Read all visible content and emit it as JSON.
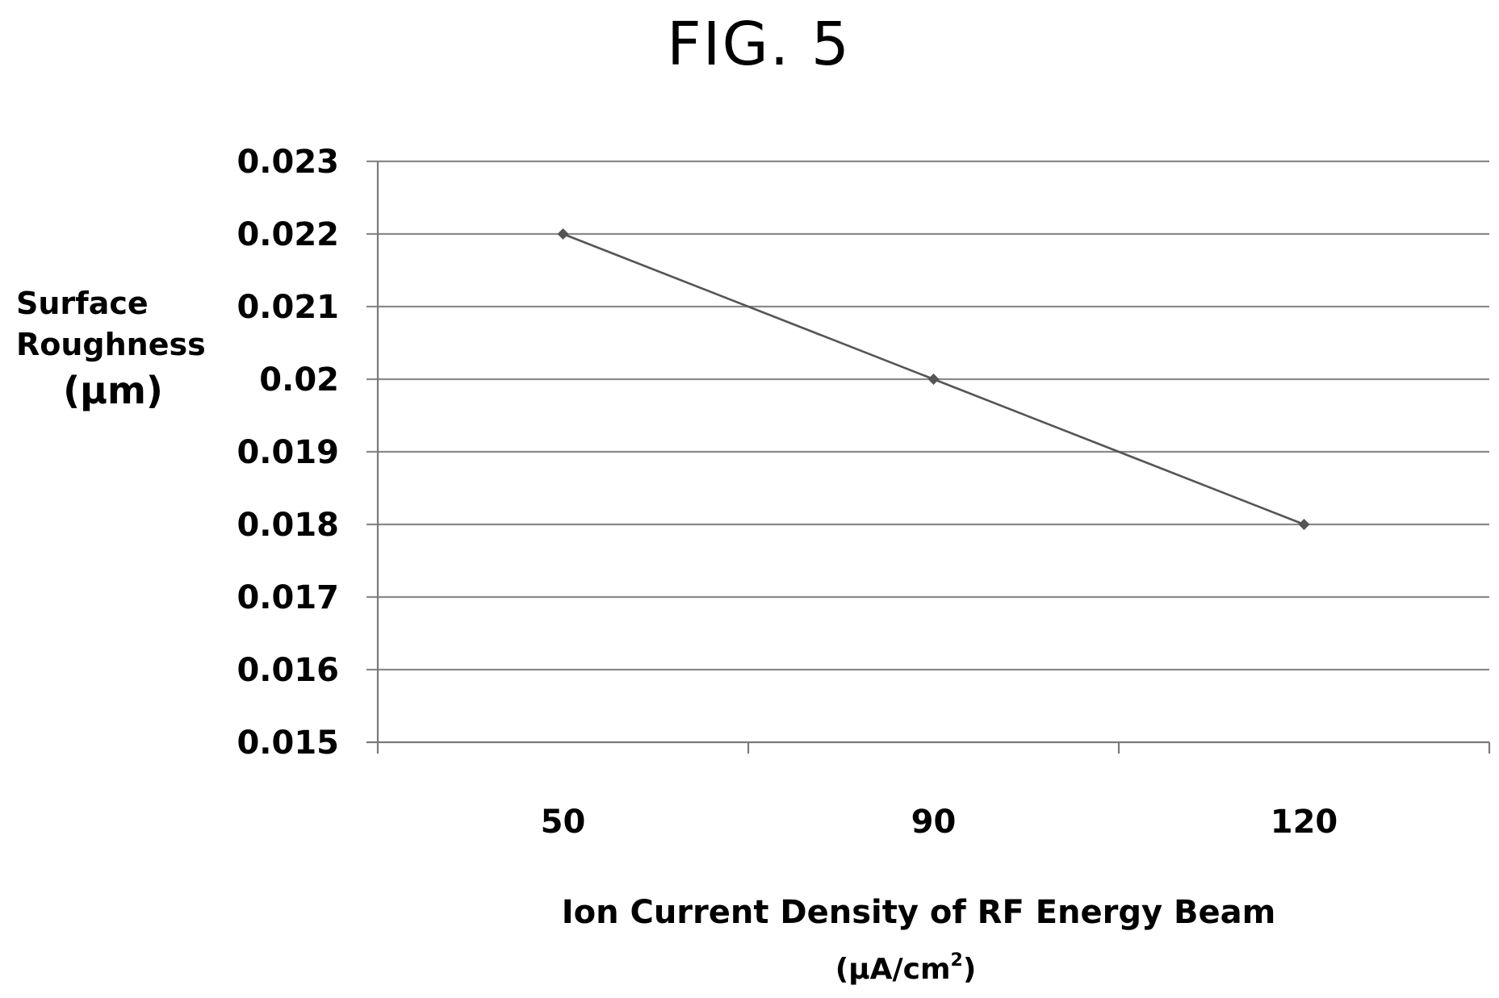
{
  "figure_label": "FIG. 5",
  "chart_data": {
    "type": "line",
    "categories": [
      "50",
      "90",
      "120"
    ],
    "series": [
      {
        "values": [
          0.022,
          0.02,
          0.018
        ]
      }
    ],
    "ylabel_lines": [
      "Surface",
      "Roughness",
      "(µm)"
    ],
    "xlabel": "Ion Current Density of RF Energy Beam",
    "xlabel_unit": "(µA/cm",
    "xlabel_unit_sup": "2",
    "xlabel_unit_close": ")",
    "ylim": [
      0.015,
      0.023
    ],
    "yticks": [
      "0.015",
      "0.016",
      "0.017",
      "0.018",
      "0.019",
      "0.02",
      "0.021",
      "0.022",
      "0.023"
    ],
    "grid": true,
    "marker": "diamond",
    "colors": {
      "line": "#555555",
      "grid": "#8a8a8a"
    }
  }
}
